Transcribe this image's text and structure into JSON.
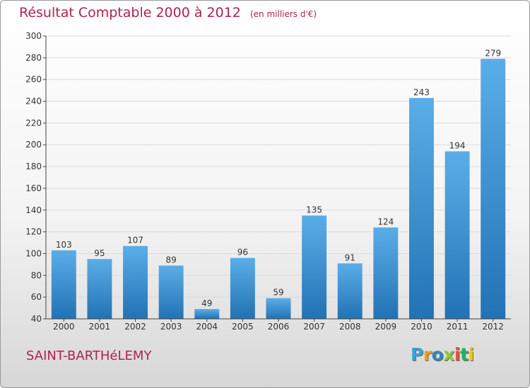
{
  "chart_data": {
    "type": "bar",
    "title": "Résultat Comptable 2000 à 2012",
    "subtitle": "(en milliers d'€)",
    "categories": [
      "2000",
      "2001",
      "2002",
      "2003",
      "2004",
      "2005",
      "2006",
      "2007",
      "2008",
      "2009",
      "2010",
      "2011",
      "2012"
    ],
    "values": [
      103,
      95,
      107,
      89,
      49,
      96,
      59,
      135,
      91,
      124,
      243,
      194,
      279
    ],
    "ylim": [
      40,
      300
    ],
    "yticks": [
      40,
      60,
      80,
      100,
      120,
      140,
      160,
      180,
      200,
      220,
      240,
      260,
      280,
      300
    ],
    "xlabel": "",
    "ylabel": "",
    "grid": true,
    "colors": {
      "bar_top": "#5aaee8",
      "bar_bottom": "#2272b4",
      "grid": "#dadada",
      "axis": "#444444"
    }
  },
  "footer": {
    "commune": "SAINT-BARTHéLEMY",
    "logo_letters": [
      {
        "char": "P",
        "color": "#3aa0d8"
      },
      {
        "char": "r",
        "color": "#f39c12"
      },
      {
        "char": "o",
        "color": "#2e86c1"
      },
      {
        "char": "x",
        "color": "#8dc63f"
      },
      {
        "char": "i",
        "color": "#e74c3c"
      },
      {
        "char": "t",
        "color": "#27ae60"
      },
      {
        "char": "i",
        "color": "#f1c40f"
      }
    ]
  }
}
